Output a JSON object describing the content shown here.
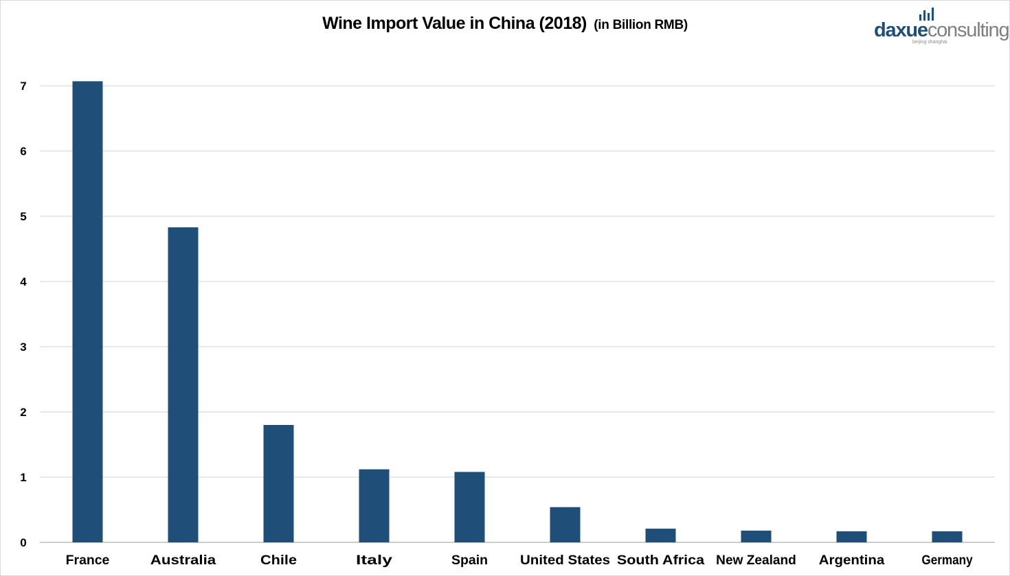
{
  "chart_data": {
    "type": "bar",
    "title": "Wine Import Value in China (2018)",
    "subtitle": "(in Billion RMB)",
    "xlabel": "",
    "ylabel": "",
    "categories": [
      "France",
      "Australia",
      "Chile",
      "Italy",
      "Spain",
      "United States",
      "South Africa",
      "New Zealand",
      "Argentina",
      "Germany"
    ],
    "values": [
      7.07,
      4.83,
      1.8,
      1.12,
      1.08,
      0.54,
      0.21,
      0.18,
      0.17,
      0.17
    ],
    "ylim": [
      0,
      7
    ],
    "yticks": [
      "0",
      "1",
      "2",
      "3",
      "4",
      "5",
      "6",
      "7"
    ],
    "grid": true,
    "bar_color": "#1f4e79",
    "grid_color": "#d9d9d9"
  },
  "logo": {
    "word_part1": "daxue",
    "word_part2": "consulting",
    "tagline": "beijing shanghai",
    "color_primary": "#1f4e79",
    "color_secondary": "#7f7f7f"
  }
}
